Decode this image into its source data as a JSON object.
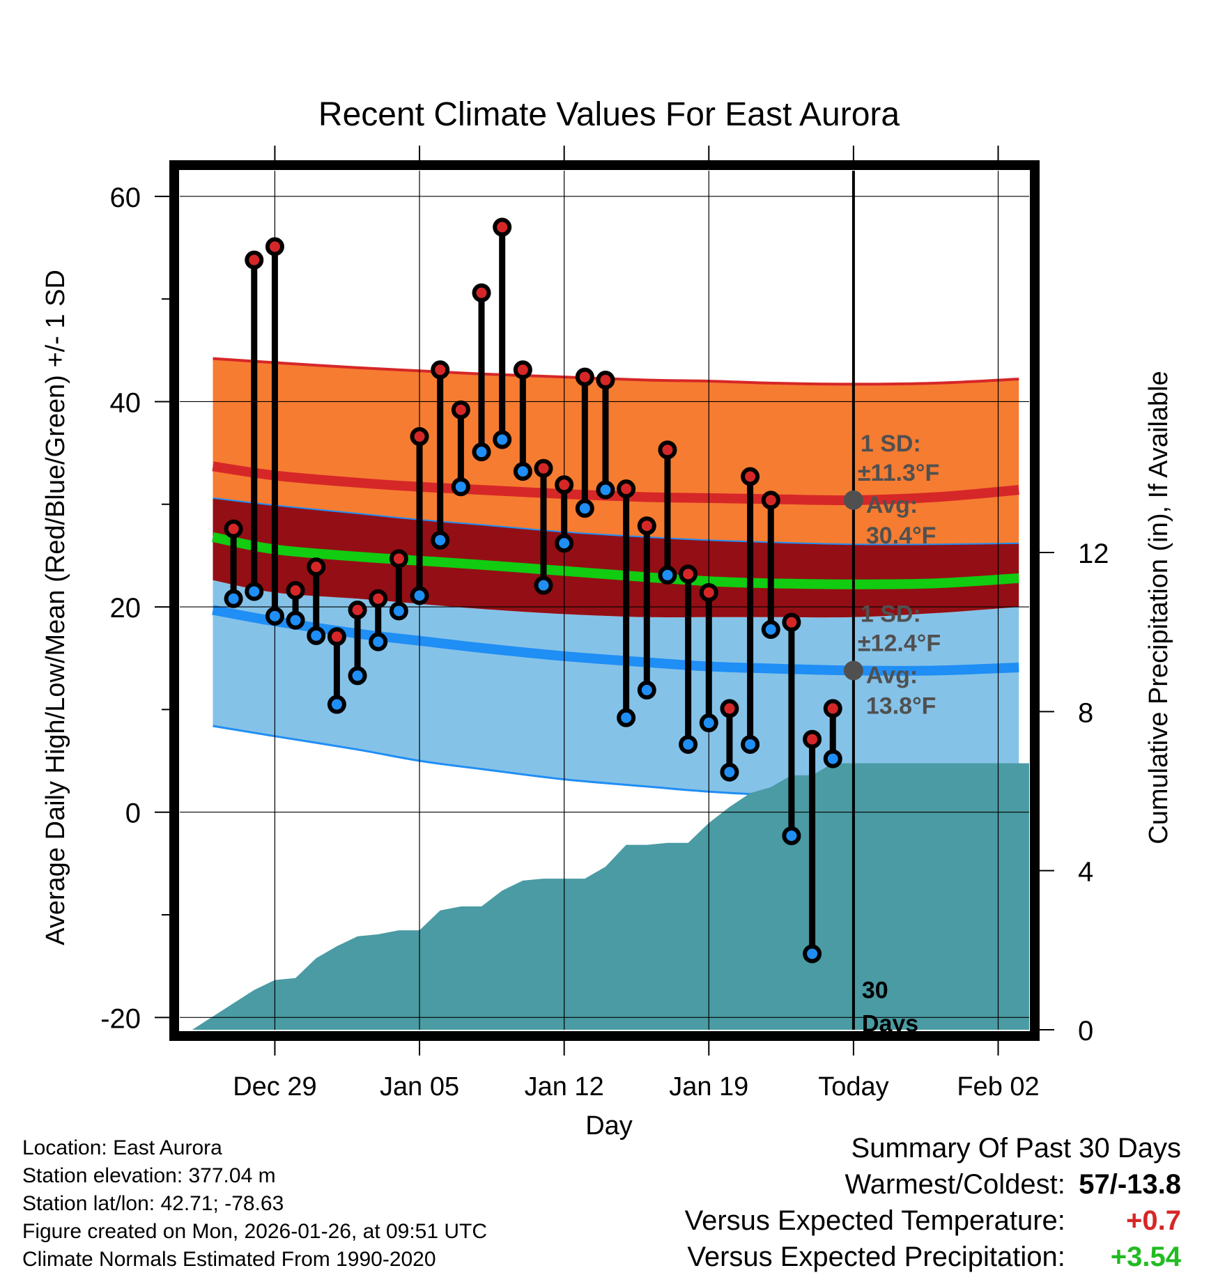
{
  "chart_data": {
    "type": "line",
    "title": "Recent Climate Values For East Aurora",
    "xlabel": "Day",
    "ylabel": "Average Daily High/Low/Mean (Red/Blue/Green) +/- 1 SD",
    "y2label": "Cumulative Precipitation (in), If Available",
    "xlim": [
      -4.6,
      36.5
    ],
    "ylim": [
      -21.2,
      62.5
    ],
    "y2lim": [
      0,
      21.6
    ],
    "x_ticks": [
      {
        "x": 0,
        "label": "Dec 29"
      },
      {
        "x": 7,
        "label": "Jan 05"
      },
      {
        "x": 14,
        "label": "Jan 12"
      },
      {
        "x": 21,
        "label": "Jan 19"
      },
      {
        "x": 28,
        "label": "Today"
      },
      {
        "x": 35,
        "label": "Feb 02"
      }
    ],
    "y_ticks": [
      -20,
      0,
      20,
      40,
      60
    ],
    "y_minor_ticks": [
      -10,
      10,
      30,
      50
    ],
    "y2_ticks": [
      0,
      4,
      8,
      12
    ],
    "today_x": 28,
    "today_label_1": "30",
    "today_label_2": "Days",
    "normals": {
      "x": [
        -3,
        0,
        4,
        7,
        10,
        14,
        18,
        21,
        24,
        28,
        32,
        36
      ],
      "high_plus_sd": [
        44.2,
        43.8,
        43.3,
        43.0,
        42.7,
        42.4,
        42.1,
        42.0,
        41.8,
        41.7,
        41.8,
        42.2
      ],
      "high_mean": [
        33.7,
        32.8,
        32.1,
        31.7,
        31.4,
        31.0,
        30.7,
        30.6,
        30.5,
        30.4,
        30.7,
        31.4
      ],
      "high_minus_sd": [
        30.6,
        29.9,
        29.1,
        28.5,
        28.0,
        27.3,
        26.8,
        26.5,
        26.3,
        26.1,
        26.1,
        26.2
      ],
      "mean": [
        26.8,
        25.6,
        24.9,
        24.5,
        24.1,
        23.5,
        22.9,
        22.5,
        22.3,
        22.2,
        22.3,
        22.8
      ],
      "low_plus_sd": [
        22.6,
        21.4,
        20.8,
        20.3,
        19.8,
        19.3,
        19.0,
        19.0,
        19.0,
        19.0,
        19.4,
        20.0
      ],
      "low_mean": [
        19.7,
        18.6,
        17.4,
        16.7,
        16.0,
        15.2,
        14.6,
        14.2,
        14.0,
        13.8,
        13.8,
        14.1
      ],
      "low_minus_sd": [
        8.4,
        7.4,
        6.1,
        5.0,
        4.2,
        3.2,
        2.5,
        2.0,
        1.7,
        1.6,
        1.7,
        2.0
      ]
    },
    "daily": {
      "x": [
        -2,
        -1,
        0,
        1,
        2,
        3,
        4,
        5,
        6,
        7,
        8,
        9,
        10,
        11,
        12,
        13,
        14,
        15,
        16,
        17,
        18,
        19,
        20,
        21,
        22,
        23,
        24,
        25,
        26,
        27
      ],
      "high": [
        27.6,
        53.8,
        55.1,
        21.6,
        23.9,
        17.1,
        19.7,
        20.8,
        24.7,
        36.6,
        43.1,
        39.2,
        50.6,
        57.0,
        43.1,
        33.5,
        31.9,
        42.4,
        42.1,
        31.5,
        27.9,
        35.3,
        23.2,
        21.4,
        10.1,
        32.7,
        30.4,
        18.5,
        7.1,
        10.1
      ],
      "low": [
        20.8,
        21.5,
        19.1,
        18.7,
        17.2,
        10.5,
        13.3,
        16.6,
        19.6,
        21.1,
        26.5,
        31.7,
        35.1,
        36.3,
        33.2,
        22.1,
        26.2,
        29.6,
        31.4,
        9.2,
        11.9,
        23.1,
        6.6,
        8.7,
        3.9,
        6.6,
        17.8,
        -2.3,
        -13.8,
        5.2
      ]
    },
    "precip_cumulative": {
      "x": [
        -4.0,
        -1.0,
        0.0,
        1.0,
        2.0,
        3.0,
        4.0,
        5.0,
        6.0,
        7.0,
        8.0,
        9.0,
        10.0,
        11.0,
        12.0,
        13.0,
        14.0,
        15.0,
        16.0,
        17.0,
        18.0,
        19.0,
        20.0,
        21.0,
        22.0,
        23.0,
        24.0,
        25.0,
        26.0,
        27.0
      ],
      "values": [
        0.0,
        1.0,
        1.25,
        1.3,
        1.8,
        2.1,
        2.35,
        2.4,
        2.5,
        2.5,
        3.0,
        3.1,
        3.1,
        3.5,
        3.75,
        3.8,
        3.8,
        3.8,
        4.1,
        4.65,
        4.65,
        4.7,
        4.7,
        5.2,
        5.6,
        5.95,
        6.1,
        6.4,
        6.4,
        6.7
      ]
    },
    "annotations": {
      "high_sd_line1": "1 SD:",
      "high_sd_line2": "±11.3°F",
      "high_avg_line1": "Avg:",
      "high_avg_line2": "30.4°F",
      "low_sd_line1": "1 SD:",
      "low_sd_line2": "±12.4°F",
      "low_avg_line1": "Avg:",
      "low_avg_line2": "13.8°F"
    },
    "colors": {
      "high_band": "#f67c31",
      "high_edge": "#d62728",
      "overlap_band": "#930f15",
      "low_band": "#85c2e8",
      "low_edge": "#1f8ef5",
      "mean_line": "#11cc11",
      "precip": "#4a9ba3",
      "high_marker": "#d62728",
      "low_marker": "#1f8ef5",
      "annotation": "#505050"
    }
  },
  "footer": {
    "location": "Location: East Aurora",
    "elevation": "Station elevation: 377.04 m",
    "latlon": "Station lat/lon: 42.71; -78.63",
    "created": "Figure created on Mon, 2026-01-26, at 09:51 UTC",
    "normals_period": "Climate Normals Estimated From 1990-2020"
  },
  "summary": {
    "title": "Summary Of Past 30 Days",
    "warm_cold_label": "Warmest/Coldest:",
    "warm_cold_value": "57/-13.8",
    "temp_label": "Versus Expected Temperature:",
    "temp_value": "+0.7",
    "temp_color": "#d62728",
    "precip_label": "Versus Expected Precipitation:",
    "precip_value": "+3.54",
    "precip_color": "#22bb22"
  }
}
